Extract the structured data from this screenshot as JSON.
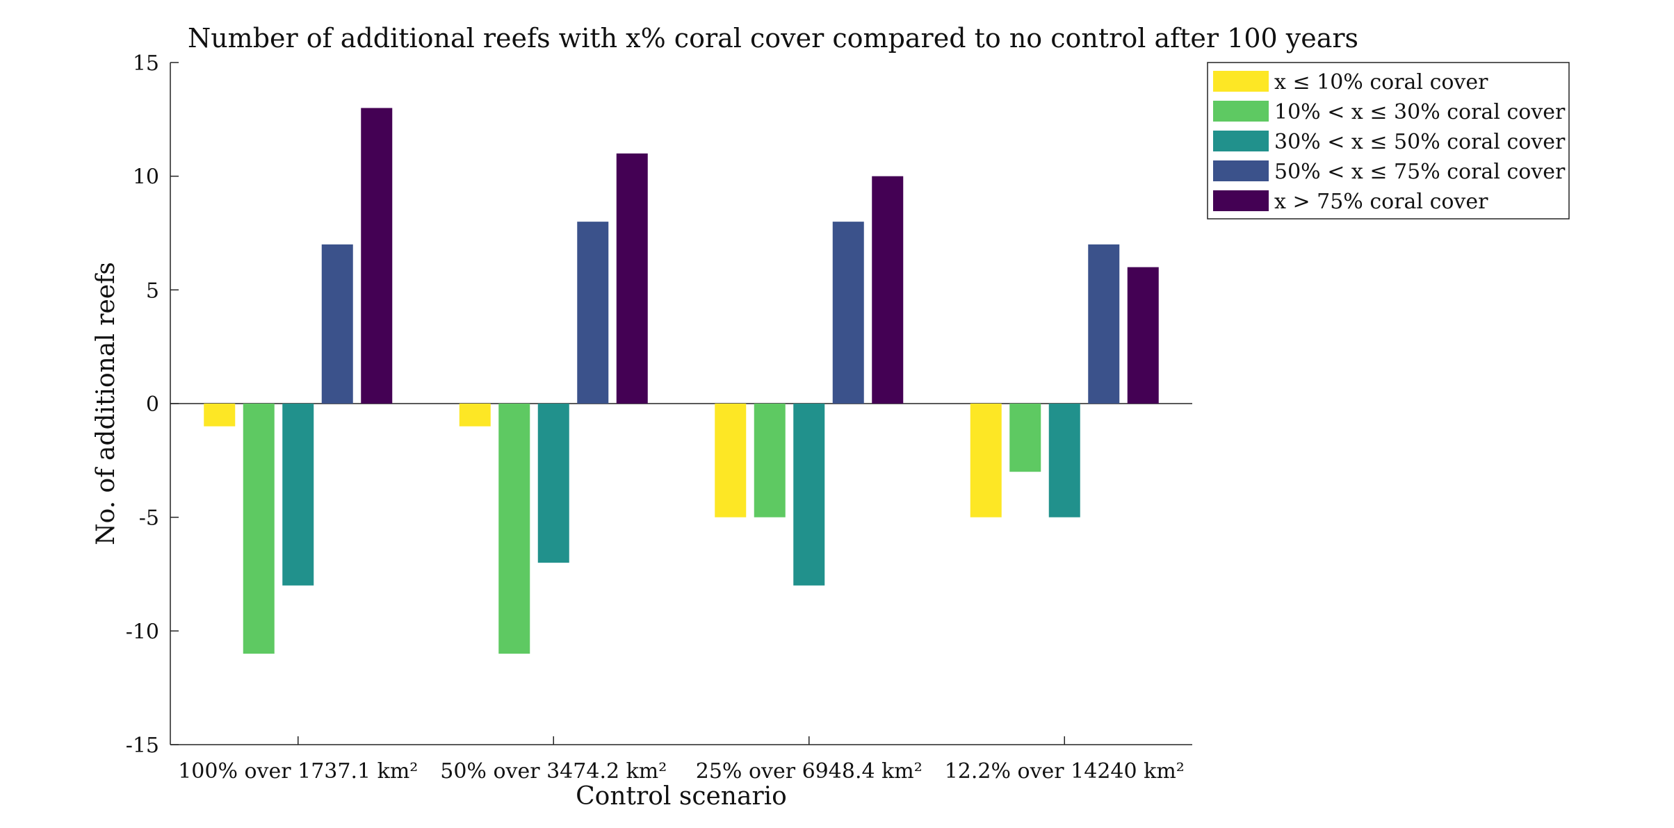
{
  "chart_data": {
    "type": "bar",
    "title": "Number of additional reefs with x% coral cover compared to no control after 100 years",
    "xlabel": "Control scenario",
    "ylabel": "No. of additional reefs",
    "ylim": [
      -15,
      15
    ],
    "yticks": [
      -15,
      -10,
      -5,
      0,
      5,
      10,
      15
    ],
    "grid": false,
    "legend_position": "top-right-outside",
    "categories": [
      "100% over 1737.1 km²",
      "50% over 3474.2 km²",
      "25% over 6948.4 km²",
      "12.2% over 14240 km²"
    ],
    "series": [
      {
        "name": "x ≤ 10% coral cover",
        "color": "#FDE725",
        "values": [
          -1,
          -1,
          -5,
          -5
        ]
      },
      {
        "name": "10% < x ≤ 30% coral cover",
        "color": "#5EC962",
        "values": [
          -11,
          -11,
          -5,
          -3
        ]
      },
      {
        "name": "30% < x ≤ 50% coral cover",
        "color": "#21918C",
        "values": [
          -8,
          -7,
          -8,
          -5
        ]
      },
      {
        "name": "50% < x ≤ 75% coral cover",
        "color": "#3B528B",
        "values": [
          7,
          8,
          8,
          7
        ]
      },
      {
        "name": "x > 75% coral cover",
        "color": "#440154",
        "values": [
          13,
          11,
          10,
          6
        ]
      }
    ]
  }
}
